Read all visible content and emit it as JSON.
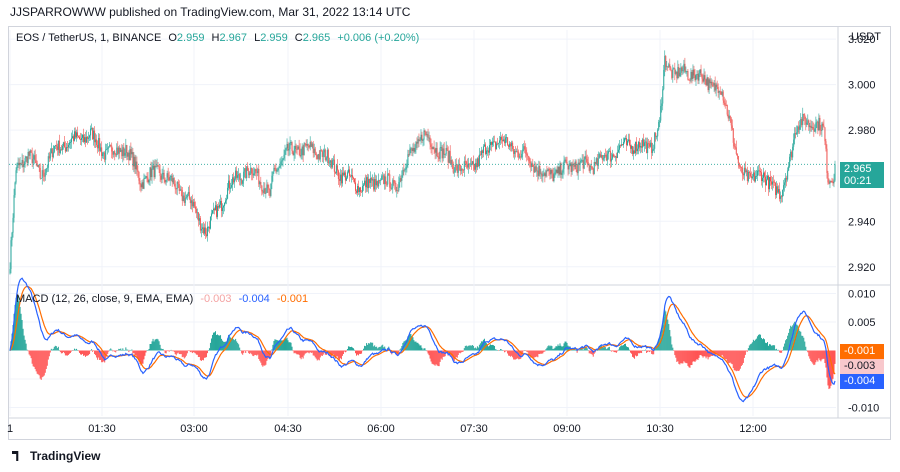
{
  "header": {
    "published": "JJSPARROWWW published on TradingView.com, Mar 31, 2022 13:14 UTC"
  },
  "price_legend": {
    "symbol": "EOS / TetherUS, 1, BINANCE",
    "o_label": "O",
    "o": "2.959",
    "h_label": "H",
    "h": "2.967",
    "l_label": "L",
    "l": "2.959",
    "c_label": "C",
    "c": "2.965",
    "change": "+0.006 (+0.20%)"
  },
  "macd_legend": {
    "title": "MACD (12, 26, close, 9, EMA, EMA)",
    "v1": "-0.003",
    "v2": "-0.004",
    "v3": "-0.001"
  },
  "currency": "USDT",
  "last_price": {
    "value": "2.965",
    "countdown": "00:21"
  },
  "macd_tags": {
    "signal": "-0.001",
    "hist": "-0.003",
    "macd": "-0.004"
  },
  "colors": {
    "up": "#26a69a",
    "down": "#ef5350",
    "macd": "#2962ff",
    "signal": "#ff6d00",
    "hist_up": "#26a69a",
    "hist_down": "#ff5252"
  },
  "brand": "TradingView",
  "chart_data": [
    {
      "type": "candlestick",
      "yticks": [
        "3.020",
        "3.000",
        "2.980",
        "2.960",
        "2.940",
        "2.920"
      ],
      "ylim": [
        2.912,
        3.024
      ],
      "xticks": [
        "1",
        "01:30",
        "03:00",
        "04:30",
        "06:00",
        "07:30",
        "09:00",
        "10:30",
        "12:00"
      ],
      "anchors": [
        [
          0,
          2.922
        ],
        [
          6,
          2.962
        ],
        [
          18,
          2.97
        ],
        [
          30,
          2.96
        ],
        [
          45,
          2.972
        ],
        [
          60,
          2.975
        ],
        [
          80,
          2.978
        ],
        [
          95,
          2.97
        ],
        [
          115,
          2.972
        ],
        [
          130,
          2.958
        ],
        [
          148,
          2.962
        ],
        [
          165,
          2.955
        ],
        [
          180,
          2.948
        ],
        [
          195,
          2.935
        ],
        [
          205,
          2.945
        ],
        [
          225,
          2.96
        ],
        [
          245,
          2.962
        ],
        [
          258,
          2.95
        ],
        [
          262,
          2.962
        ],
        [
          275,
          2.97
        ],
        [
          290,
          2.972
        ],
        [
          310,
          2.97
        ],
        [
          330,
          2.96
        ],
        [
          350,
          2.955
        ],
        [
          370,
          2.958
        ],
        [
          382,
          2.955
        ],
        [
          398,
          2.97
        ],
        [
          410,
          2.978
        ],
        [
          425,
          2.972
        ],
        [
          440,
          2.965
        ],
        [
          455,
          2.962
        ],
        [
          470,
          2.97
        ],
        [
          485,
          2.976
        ],
        [
          500,
          2.972
        ],
        [
          515,
          2.968
        ],
        [
          530,
          2.96
        ],
        [
          545,
          2.962
        ],
        [
          560,
          2.965
        ],
        [
          575,
          2.964
        ],
        [
          590,
          2.968
        ],
        [
          605,
          2.972
        ],
        [
          620,
          2.974
        ],
        [
          635,
          2.972
        ],
        [
          645,
          2.982
        ],
        [
          650,
          3.01
        ],
        [
          660,
          3.005
        ],
        [
          680,
          3.005
        ],
        [
          690,
          3.002
        ],
        [
          705,
          2.998
        ],
        [
          715,
          2.985
        ],
        [
          725,
          2.96
        ],
        [
          740,
          2.96
        ],
        [
          755,
          2.958
        ],
        [
          765,
          2.95
        ],
        [
          770,
          2.96
        ],
        [
          780,
          2.98
        ],
        [
          790,
          2.985
        ],
        [
          800,
          2.982
        ],
        [
          808,
          2.98
        ],
        [
          812,
          2.96
        ]
      ]
    },
    {
      "type": "macd",
      "name": "MACD (12, 26, close, 9, EMA, EMA)",
      "yticks": [
        "0.010",
        "0.005",
        "-0.005",
        "-0.010"
      ],
      "ylim": [
        -0.0115,
        0.0115
      ]
    }
  ]
}
